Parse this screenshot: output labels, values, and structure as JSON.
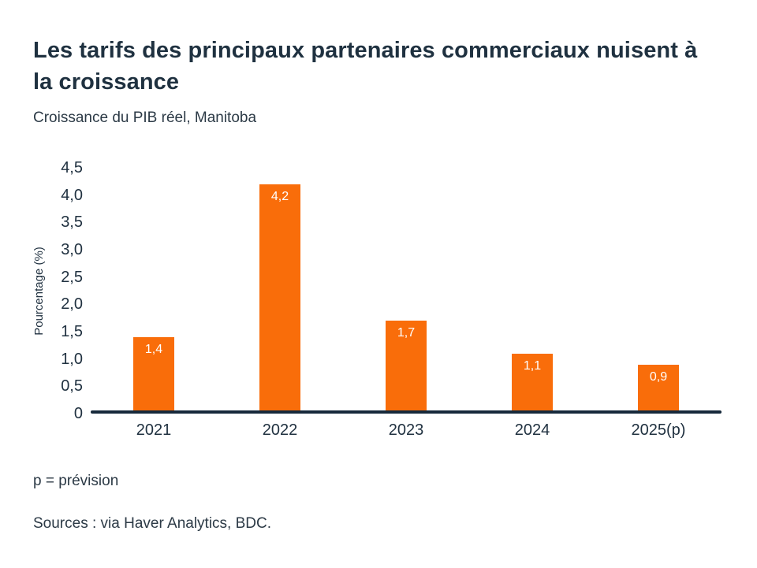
{
  "page": {
    "title": "Les tarifs des principaux partenaires commerciaux nuisent à la croissance",
    "subtitle": "Croissance du PIB réel, Manitoba",
    "footnote": "p = prévision",
    "sources": "Sources : via Haver Analytics, BDC."
  },
  "colors": {
    "bar": "#F96D0A",
    "axis": "#16293B",
    "heading": "#1F3140",
    "text": "#2C3A46",
    "tick": "#203140",
    "value_label": "#FFFFFF",
    "background": "#FFFFFF"
  },
  "chart_data": {
    "type": "bar",
    "title": "Les tarifs des principaux partenaires commerciaux nuisent à la croissance",
    "subtitle": "Croissance du PIB réel, Manitoba",
    "categories": [
      "2021",
      "2022",
      "2023",
      "2024",
      "2025(p)"
    ],
    "values": [
      1.4,
      4.2,
      1.7,
      1.1,
      0.9
    ],
    "value_labels": [
      "1,4",
      "4,2",
      "1,7",
      "1,1",
      "0,9"
    ],
    "xlabel": "",
    "ylabel": "Pourcentage (%)",
    "ylim": [
      0,
      4.5
    ],
    "ytick_step": 0.5,
    "ytick_labels": [
      "0",
      "0,5",
      "1,0",
      "1,5",
      "2,0",
      "2,5",
      "3,0",
      "3,5",
      "4,0",
      "4,5"
    ],
    "grid": false,
    "legend": "none",
    "bar_color": "#F96D0A",
    "value_label_position": "inside-top",
    "footnote": "p = prévision",
    "sources": "Sources : via Haver Analytics, BDC."
  }
}
